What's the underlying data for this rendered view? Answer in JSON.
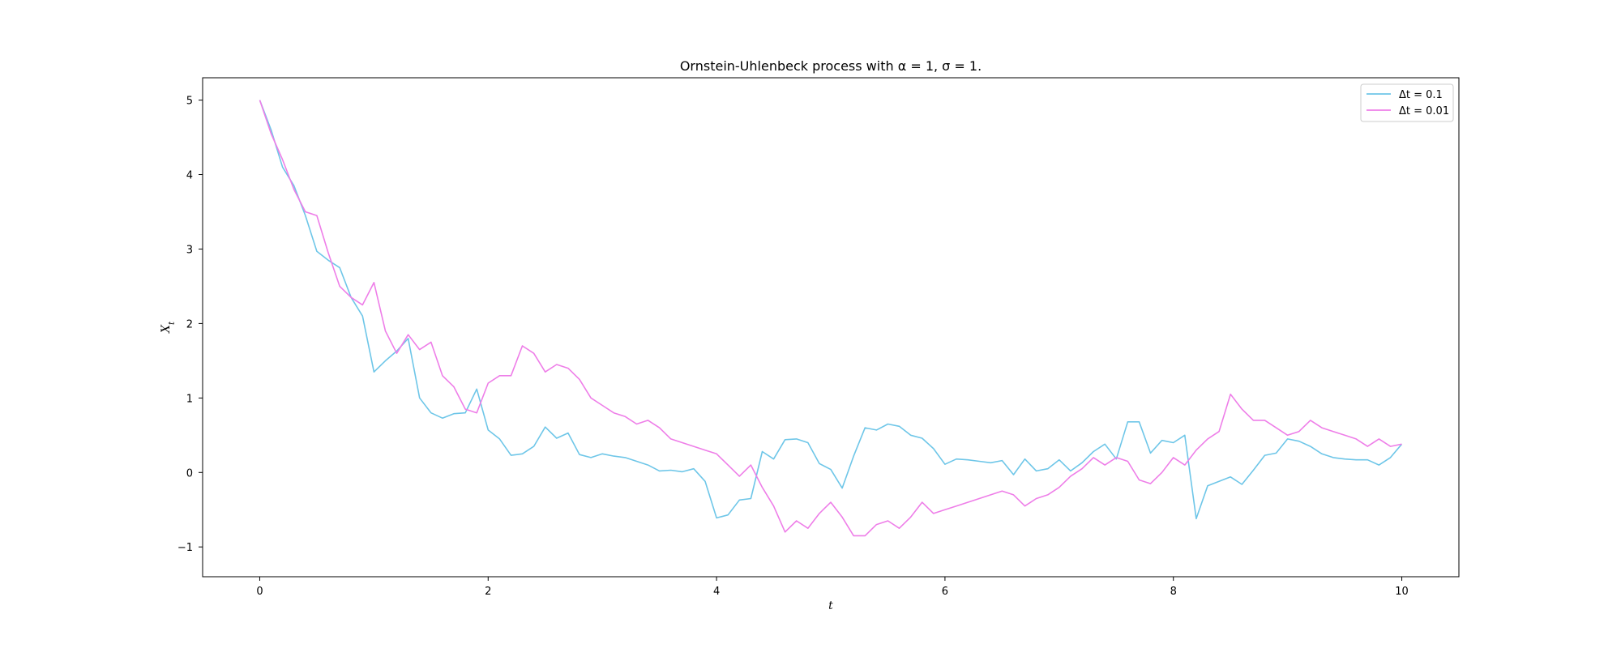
{
  "chart_data": {
    "type": "line",
    "title": "Ornstein-Uhlenbeck process with α = 1, σ = 1.",
    "xlabel": "t",
    "ylabel": "X_t",
    "xlim": [
      -0.5,
      10.5
    ],
    "ylim": [
      -1.4,
      5.3
    ],
    "xticks": [
      0,
      2,
      4,
      6,
      8,
      10
    ],
    "yticks": [
      -1,
      0,
      1,
      2,
      3,
      4,
      5
    ],
    "grid": false,
    "legend_position": "top-right",
    "series": [
      {
        "name": "Δt = 0.1",
        "color": "#6ec6e8",
        "x": [
          0,
          0.1,
          0.2,
          0.3,
          0.4,
          0.5,
          0.6,
          0.7,
          0.8,
          0.9,
          1.0,
          1.1,
          1.2,
          1.3,
          1.4,
          1.5,
          1.6,
          1.7,
          1.8,
          1.9,
          2.0,
          2.1,
          2.2,
          2.3,
          2.4,
          2.5,
          2.6,
          2.7,
          2.8,
          2.9,
          3.0,
          3.1,
          3.2,
          3.3,
          3.4,
          3.5,
          3.6,
          3.7,
          3.8,
          3.9,
          4.0,
          4.1,
          4.2,
          4.3,
          4.4,
          4.5,
          4.6,
          4.7,
          4.8,
          4.9,
          5.0,
          5.1,
          5.2,
          5.3,
          5.4,
          5.5,
          5.6,
          5.7,
          5.8,
          5.9,
          6.0,
          6.1,
          6.2,
          6.3,
          6.4,
          6.5,
          6.6,
          6.7,
          6.8,
          6.9,
          7.0,
          7.1,
          7.2,
          7.3,
          7.4,
          7.5,
          7.6,
          7.7,
          7.8,
          7.9,
          8.0,
          8.1,
          8.2,
          8.3,
          8.4,
          8.5,
          8.6,
          8.7,
          8.8,
          8.9,
          9.0,
          9.1,
          9.2,
          9.3,
          9.4,
          9.5,
          9.6,
          9.7,
          9.8,
          9.9,
          10.0
        ],
        "y": [
          5.0,
          4.6,
          4.1,
          3.85,
          3.45,
          2.97,
          2.85,
          2.75,
          2.35,
          2.1,
          1.35,
          1.5,
          1.63,
          1.8,
          1.0,
          0.8,
          0.73,
          0.79,
          0.8,
          1.12,
          0.57,
          0.45,
          0.23,
          0.25,
          0.35,
          0.61,
          0.46,
          0.53,
          0.24,
          0.2,
          0.25,
          0.22,
          0.2,
          0.15,
          0.1,
          0.02,
          0.03,
          0.01,
          0.05,
          -0.12,
          -0.61,
          -0.57,
          -0.37,
          -0.35,
          0.28,
          0.18,
          0.44,
          0.45,
          0.4,
          0.12,
          0.04,
          -0.21,
          0.22,
          0.6,
          0.57,
          0.65,
          0.62,
          0.5,
          0.46,
          0.32,
          0.11,
          0.18,
          0.17,
          0.15,
          0.13,
          0.16,
          -0.03,
          0.18,
          0.02,
          0.05,
          0.17,
          0.02,
          0.13,
          0.28,
          0.38,
          0.18,
          0.68,
          0.68,
          0.26,
          0.43,
          0.4,
          0.5,
          -0.62,
          -0.18,
          -0.12,
          -0.06,
          -0.16,
          0.03,
          0.23,
          0.26,
          0.45,
          0.42,
          0.35,
          0.25,
          0.2,
          0.18,
          0.17,
          0.17,
          0.1,
          0.2,
          0.38
        ]
      },
      {
        "name": "Δt = 0.01",
        "color": "#ee7ee8",
        "x": [
          0,
          0.1,
          0.2,
          0.3,
          0.4,
          0.5,
          0.6,
          0.7,
          0.8,
          0.9,
          1.0,
          1.1,
          1.2,
          1.3,
          1.4,
          1.5,
          1.6,
          1.7,
          1.8,
          1.9,
          2.0,
          2.1,
          2.2,
          2.3,
          2.4,
          2.5,
          2.6,
          2.7,
          2.8,
          2.9,
          3.0,
          3.1,
          3.2,
          3.3,
          3.4,
          3.5,
          3.6,
          3.7,
          3.8,
          3.9,
          4.0,
          4.1,
          4.2,
          4.3,
          4.4,
          4.5,
          4.6,
          4.7,
          4.8,
          4.9,
          5.0,
          5.1,
          5.2,
          5.3,
          5.4,
          5.5,
          5.6,
          5.7,
          5.8,
          5.9,
          6.0,
          6.1,
          6.2,
          6.3,
          6.4,
          6.5,
          6.6,
          6.7,
          6.8,
          6.9,
          7.0,
          7.1,
          7.2,
          7.3,
          7.4,
          7.5,
          7.6,
          7.7,
          7.8,
          7.9,
          8.0,
          8.1,
          8.2,
          8.3,
          8.4,
          8.5,
          8.6,
          8.7,
          8.8,
          8.9,
          9.0,
          9.1,
          9.2,
          9.3,
          9.4,
          9.5,
          9.6,
          9.7,
          9.8,
          9.9,
          10.0
        ],
        "y": [
          5.0,
          4.55,
          4.2,
          3.8,
          3.5,
          3.45,
          2.95,
          2.5,
          2.35,
          2.25,
          2.55,
          1.9,
          1.6,
          1.85,
          1.65,
          1.75,
          1.3,
          1.15,
          0.85,
          0.8,
          1.2,
          1.3,
          1.3,
          1.7,
          1.6,
          1.35,
          1.45,
          1.4,
          1.25,
          1.0,
          0.9,
          0.8,
          0.75,
          0.65,
          0.7,
          0.6,
          0.45,
          0.4,
          0.35,
          0.3,
          0.25,
          0.1,
          -0.05,
          0.1,
          -0.2,
          -0.45,
          -0.8,
          -0.65,
          -0.75,
          -0.55,
          -0.4,
          -0.6,
          -0.85,
          -0.85,
          -0.7,
          -0.65,
          -0.75,
          -0.6,
          -0.4,
          -0.55,
          -0.5,
          -0.45,
          -0.4,
          -0.35,
          -0.3,
          -0.25,
          -0.3,
          -0.45,
          -0.35,
          -0.3,
          -0.2,
          -0.05,
          0.05,
          0.2,
          0.1,
          0.2,
          0.15,
          -0.1,
          -0.15,
          0.0,
          0.2,
          0.1,
          0.3,
          0.45,
          0.55,
          1.05,
          0.85,
          0.7,
          0.7,
          0.6,
          0.5,
          0.55,
          0.7,
          0.6,
          0.55,
          0.5,
          0.45,
          0.35,
          0.45,
          0.35,
          0.38
        ]
      }
    ]
  }
}
